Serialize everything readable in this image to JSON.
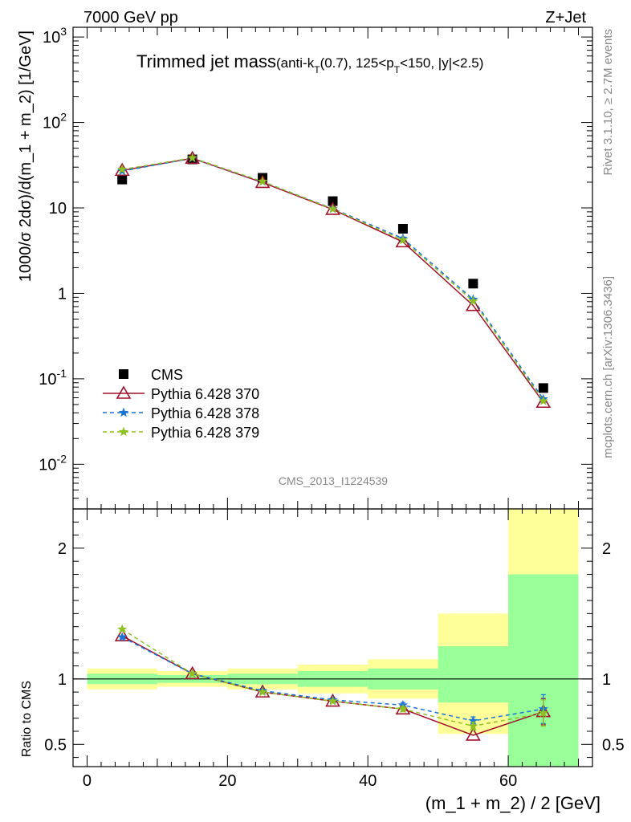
{
  "header": {
    "left": "7000 GeV pp",
    "right": "Z+Jet"
  },
  "plot": {
    "title_main": "Trimmed jet mass",
    "title_detail": "(anti-k_T(0.7), 125<p_T<150, |y|<2.5)",
    "ylabel": "1000/σ 2dσ)/d(m_1 + m_2) [1/GeV]",
    "ratio_ylabel": "Ratio to CMS",
    "xlabel": "(m_1 + m_2) / 2 [GeV]",
    "watermark": "CMS_2013_I1224539",
    "side_rivet": "Rivet 3.1.10, ≥ 2.7M events",
    "side_mcplots": "mcplots.cern.ch [arXiv:1306.3436]",
    "colors": {
      "cms": "#000000",
      "p370": "#a0102a",
      "p378": "#1a74d6",
      "p379": "#8ec022",
      "band_inner": "#99ff99",
      "band_outer": "#ffff99"
    }
  },
  "legend": [
    {
      "label": "CMS",
      "key": "cms"
    },
    {
      "label": "Pythia 6.428 370",
      "key": "p370"
    },
    {
      "label": "Pythia 6.428 378",
      "key": "p378"
    },
    {
      "label": "Pythia 6.428 379",
      "key": "p379"
    }
  ],
  "chart_data": {
    "type": "scatter",
    "x_range": [
      -2,
      72
    ],
    "y_range": [
      0.003,
      1300
    ],
    "y_scale": "log",
    "x_ticks": [
      0,
      20,
      40,
      60
    ],
    "y_ticks": [
      {
        "v": 0.01,
        "label": "10^-2"
      },
      {
        "v": 0.1,
        "label": "10^-1"
      },
      {
        "v": 1,
        "label": "1"
      },
      {
        "v": 10,
        "label": "10"
      },
      {
        "v": 100,
        "label": "10^2"
      },
      {
        "v": 1000,
        "label": "10^3"
      }
    ],
    "x": [
      5,
      15,
      25,
      35,
      45,
      55,
      65
    ],
    "series": [
      {
        "name": "CMS",
        "key": "cms",
        "values": [
          21.5,
          37.0,
          22.5,
          12.0,
          5.7,
          1.3,
          0.078
        ]
      },
      {
        "name": "Pythia 6.428 370",
        "key": "p370",
        "values": [
          27.5,
          38.0,
          19.8,
          9.6,
          4.0,
          0.72,
          0.053
        ]
      },
      {
        "name": "Pythia 6.428 378",
        "key": "p378",
        "values": [
          27.0,
          38.2,
          20.3,
          9.8,
          4.4,
          0.85,
          0.058
        ]
      },
      {
        "name": "Pythia 6.428 379",
        "key": "p379",
        "values": [
          28.2,
          38.5,
          20.4,
          9.7,
          4.2,
          0.81,
          0.055
        ]
      }
    ],
    "ratio": {
      "y_range": [
        0.33,
        2.3
      ],
      "y_ticks": [
        0.5,
        1,
        2
      ],
      "bins": [
        [
          0,
          10
        ],
        [
          10,
          20
        ],
        [
          20,
          30
        ],
        [
          30,
          40
        ],
        [
          40,
          50
        ],
        [
          50,
          60
        ],
        [
          60,
          70
        ]
      ],
      "band_inner": [
        [
          0.96,
          1.04
        ],
        [
          0.97,
          1.03
        ],
        [
          0.96,
          1.04
        ],
        [
          0.94,
          1.06
        ],
        [
          0.92,
          1.08
        ],
        [
          0.82,
          1.25
        ],
        [
          0.33,
          1.8
        ]
      ],
      "band_outer": [
        [
          0.92,
          1.08
        ],
        [
          0.94,
          1.06
        ],
        [
          0.92,
          1.08
        ],
        [
          0.89,
          1.11
        ],
        [
          0.85,
          1.15
        ],
        [
          0.58,
          1.5
        ],
        [
          0.33,
          2.3
        ]
      ],
      "series": [
        {
          "key": "p370",
          "values": [
            1.33,
            1.04,
            0.9,
            0.83,
            0.77,
            0.57,
            0.75
          ],
          "err": [
            0,
            0,
            0,
            0,
            0,
            0,
            0.1
          ]
        },
        {
          "key": "p378",
          "values": [
            1.32,
            1.04,
            0.91,
            0.84,
            0.8,
            0.68,
            0.77
          ],
          "err": [
            0,
            0,
            0,
            0,
            0.02,
            0.03,
            0.11
          ]
        },
        {
          "key": "p379",
          "values": [
            1.38,
            1.04,
            0.9,
            0.83,
            0.77,
            0.64,
            0.74
          ],
          "err": [
            0,
            0,
            0,
            0,
            0.02,
            0.03,
            0.1
          ]
        }
      ]
    }
  }
}
